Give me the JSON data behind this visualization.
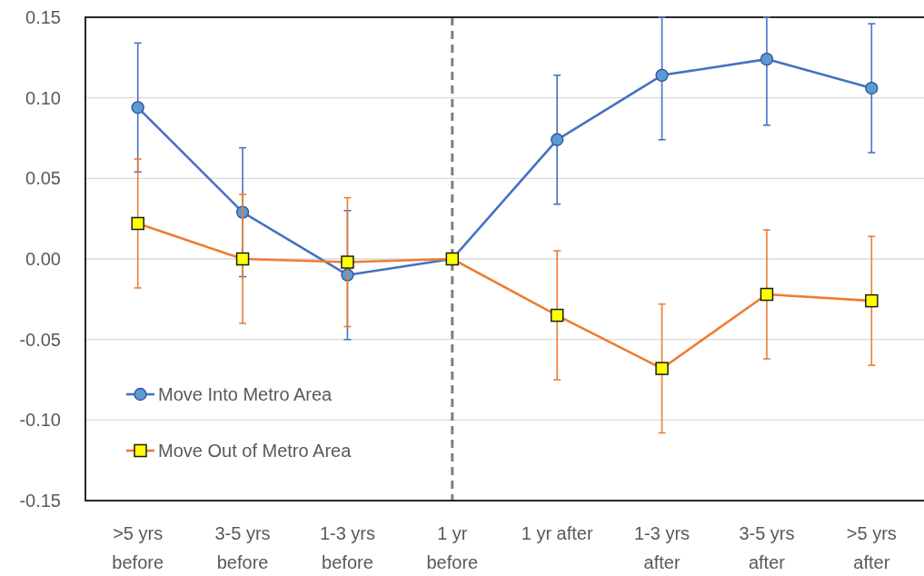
{
  "chart_data": {
    "type": "line",
    "categories": [
      ">5 yrs\nbefore",
      "3-5 yrs\nbefore",
      "1-3 yrs\nbefore",
      "1 yr\nbefore",
      "1 yr after",
      "1-3 yrs\nafter",
      "3-5 yrs\nafter",
      ">5 yrs\nafter"
    ],
    "series": [
      {
        "name": "Move Into Metro Area",
        "color": "#4472c4",
        "marker": "circle",
        "values": [
          0.094,
          0.029,
          -0.01,
          0,
          0.074,
          0.114,
          0.124,
          0.106
        ],
        "errors": [
          0.04,
          0.04,
          0.04,
          null,
          0.04,
          [
            0.074,
            0.15
          ],
          [
            0.083,
            0.15
          ],
          0.04
        ]
      },
      {
        "name": "Move Out of Metro Area",
        "color": "#ed7d31",
        "marker": "square",
        "values": [
          0.022,
          0,
          -0.002,
          0,
          -0.035,
          -0.068,
          -0.022,
          -0.026
        ],
        "errors": [
          0.04,
          0.04,
          0.04,
          null,
          0.04,
          0.04,
          0.04,
          0.04
        ]
      }
    ],
    "ylim": [
      -0.15,
      0.15
    ],
    "yticks": [
      -0.15,
      {
        "value": -0.1,
        "label": "-0.10"
      },
      -0.05,
      {
        "value": 0,
        "label": "0.00"
      },
      0.05,
      {
        "value": 0.1,
        "label": "0.10"
      },
      0.15
    ],
    "grid": "y",
    "legend": "bottom left",
    "ref_lines": [
      {
        "axis": "x",
        "value": "1 yr\nbefore",
        "color": "#7f7f7f",
        "line_style": "dashed"
      }
    ]
  }
}
